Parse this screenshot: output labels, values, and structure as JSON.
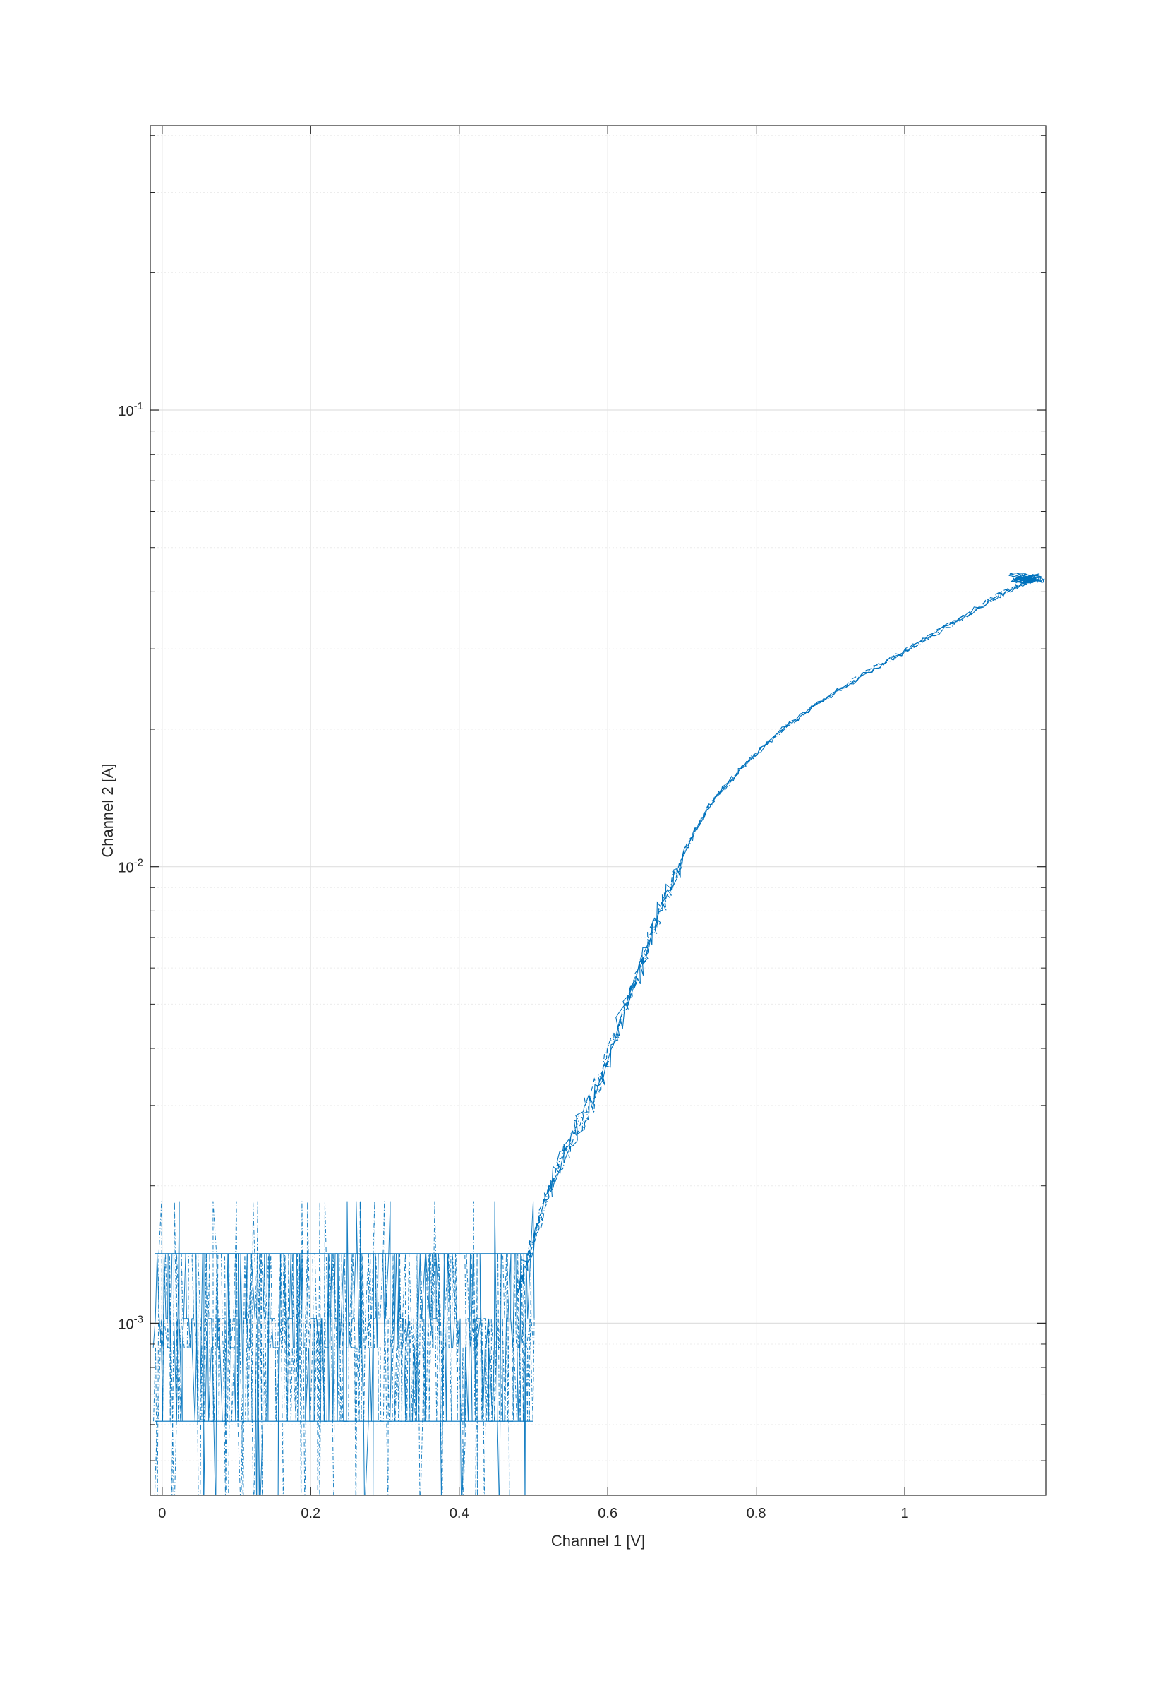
{
  "chart_data": {
    "type": "line",
    "xlabel": "Channel 1 [V]",
    "ylabel": "Channel 2 [A]",
    "xlim": [
      -0.016,
      1.19
    ],
    "ylim": [
      0.00042,
      0.42
    ],
    "yscale": "log",
    "grid": true,
    "x_ticks": [
      0,
      0.2,
      0.4,
      0.6,
      0.8,
      1
    ],
    "x_tick_labels": [
      "0",
      "0.2",
      "0.4",
      "0.6",
      "0.8",
      "1"
    ],
    "y_ticks": [
      0.001,
      0.01,
      0.1
    ],
    "y_tick_labels": [
      {
        "base": "10",
        "exp": "-3"
      },
      {
        "base": "10",
        "exp": "-2"
      },
      {
        "base": "10",
        "exp": "-1"
      }
    ],
    "series": [
      {
        "color": "#0072BD",
        "noise_band": {
          "x_range": [
            -0.01,
            0.5
          ],
          "y_low": 0.00061,
          "y_high": 0.00142,
          "y_spikes_high": 0.00185
        },
        "curve": {
          "x": [
            0.48,
            0.5,
            0.52,
            0.54,
            0.56,
            0.58,
            0.6,
            0.62,
            0.64,
            0.66,
            0.68,
            0.7,
            0.72,
            0.74,
            0.76,
            0.78,
            0.8,
            0.84,
            0.88,
            0.92,
            0.96,
            1.0,
            1.04,
            1.08,
            1.12,
            1.15,
            1.17,
            1.19
          ],
          "y": [
            0.00118,
            0.00155,
            0.0019,
            0.0023,
            0.0027,
            0.0031,
            0.0038,
            0.0047,
            0.0058,
            0.0071,
            0.0088,
            0.0105,
            0.0122,
            0.0138,
            0.0151,
            0.0164,
            0.0177,
            0.0203,
            0.0226,
            0.0249,
            0.0272,
            0.0297,
            0.0324,
            0.0353,
            0.0388,
            0.041,
            0.0425,
            0.0425
          ]
        }
      }
    ]
  }
}
